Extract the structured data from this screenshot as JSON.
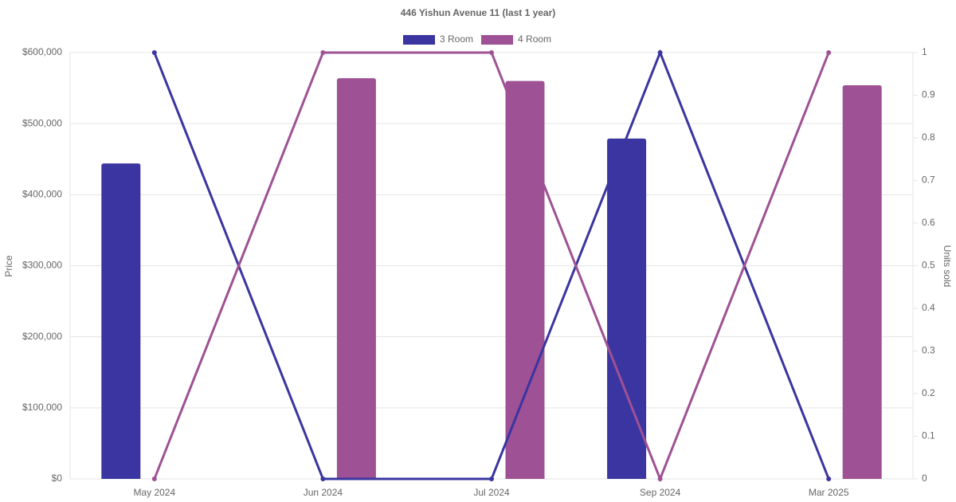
{
  "chart_data": {
    "type": "bar-line",
    "title": "446 Yishun Avenue 11 (last 1 year)",
    "categories": [
      "May 2024",
      "Jun 2024",
      "Jul 2024",
      "Sep 2024",
      "Mar 2025"
    ],
    "y_label": "Price",
    "y2_label": "Units sold",
    "series": [
      {
        "name": "3 Room",
        "color": "#3a35a0",
        "values": [
          444000,
          null,
          null,
          479000,
          null
        ],
        "units_sold": [
          1,
          0,
          0,
          1,
          0
        ]
      },
      {
        "name": "4 Room",
        "color": "#9e5194",
        "values": [
          null,
          564000,
          560000,
          null,
          554000
        ],
        "units_sold": [
          0,
          1,
          1,
          0,
          1
        ]
      }
    ],
    "ylim": [
      0,
      600000
    ],
    "yticks": [
      {
        "value": 0,
        "label": "$0"
      },
      {
        "value": 100000,
        "label": "$100,000"
      },
      {
        "value": 200000,
        "label": "$200,000"
      },
      {
        "value": 300000,
        "label": "$300,000"
      },
      {
        "value": 400000,
        "label": "$400,000"
      },
      {
        "value": 500000,
        "label": "$500,000"
      },
      {
        "value": 600000,
        "label": "$600,000"
      }
    ],
    "y2lim": [
      0,
      1
    ],
    "y2ticks": [
      0,
      0.1,
      0.2,
      0.3,
      0.4,
      0.5,
      0.6,
      0.7,
      0.8,
      0.9,
      1
    ],
    "grid": true
  }
}
